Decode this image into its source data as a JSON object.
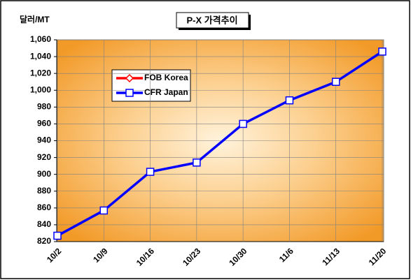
{
  "chart_data": {
    "type": "line",
    "title": "P-X 가격추이",
    "y_label": "달러/MT",
    "categories": [
      "10/2",
      "10/9",
      "10/16",
      "10/23",
      "10/30",
      "11/6",
      "11/13",
      "11/20"
    ],
    "series": [
      {
        "name": "FOB Korea",
        "color": "#ff0000",
        "marker": "diamond",
        "values": [
          null,
          null,
          null,
          null,
          null,
          null,
          null,
          null
        ]
      },
      {
        "name": "CFR Japan",
        "color": "#0000ff",
        "marker": "square",
        "values": [
          827,
          857,
          903,
          914,
          960,
          988,
          1010,
          1046
        ]
      }
    ],
    "ylim": [
      820,
      1060
    ],
    "yticks": [
      820,
      840,
      860,
      880,
      900,
      920,
      940,
      960,
      980,
      {
        "value": 1000,
        "label": "1,000"
      },
      {
        "value": 1020,
        "label": "1,020"
      },
      {
        "value": 1040,
        "label": "1,040"
      },
      {
        "value": 1060,
        "label": "1,060"
      }
    ],
    "grid": true
  }
}
